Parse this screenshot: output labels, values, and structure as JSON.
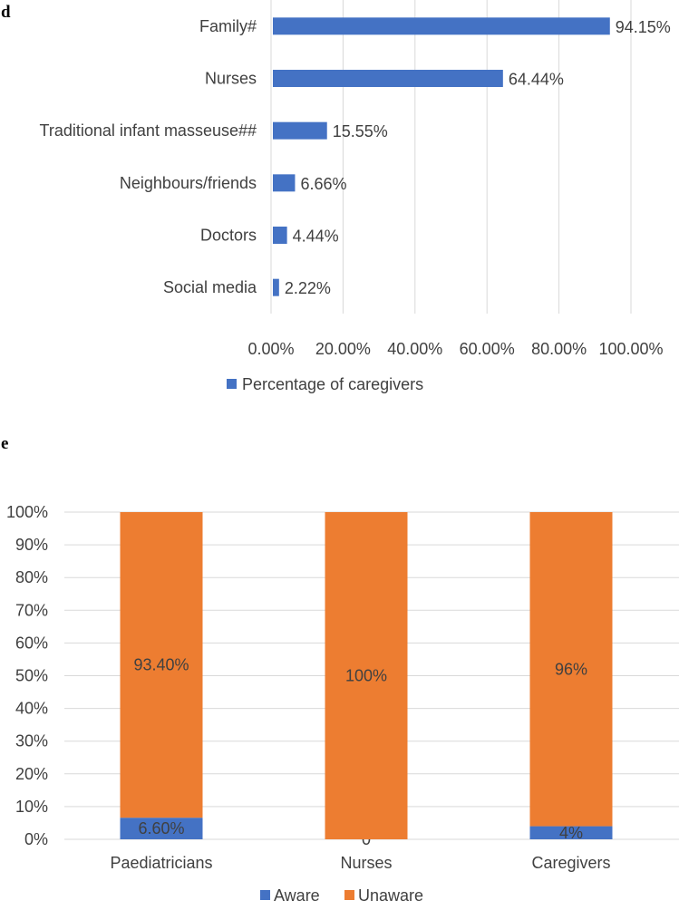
{
  "colors": {
    "aware": "#4472c4",
    "unaware": "#ed7d31",
    "grid": "#d9d9d9",
    "text": "#404040"
  },
  "chart_data": [
    {
      "panel_label": "d",
      "type": "bar",
      "orientation": "horizontal",
      "categories": [
        "Family#",
        "Nurses",
        "Traditional infant masseuse##",
        "Neighbours/friends",
        "Doctors",
        "Social media"
      ],
      "series": [
        {
          "name": "Percentage of caregivers",
          "values": [
            94.15,
            64.44,
            15.55,
            6.66,
            4.44,
            2.22
          ],
          "labels": [
            "94.15%",
            "64.44%",
            "15.55%",
            "6.66%",
            "4.44%",
            "2.22%"
          ]
        }
      ],
      "xlim": [
        0,
        100
      ],
      "xticks": [
        0,
        20,
        40,
        60,
        80,
        100
      ],
      "xtick_labels": [
        "0.00%",
        "20.00%",
        "40.00%",
        "60.00%",
        "80.00%",
        "100.00%"
      ],
      "grid": true,
      "legend": "bottom"
    },
    {
      "panel_label": "e",
      "type": "bar",
      "stacked": true,
      "categories": [
        "Paediatricians",
        "Nurses",
        "Caregivers"
      ],
      "series": [
        {
          "name": "Aware",
          "values": [
            6.6,
            0,
            4
          ],
          "labels": [
            "6.60%",
            "0",
            "4%"
          ]
        },
        {
          "name": "Unaware",
          "values": [
            93.4,
            100,
            96
          ],
          "labels": [
            "93.40%",
            "100%",
            "96%"
          ]
        }
      ],
      "ylim": [
        0,
        100
      ],
      "yticks": [
        0,
        10,
        20,
        30,
        40,
        50,
        60,
        70,
        80,
        90,
        100
      ],
      "ytick_labels": [
        "0%",
        "10%",
        "20%",
        "30%",
        "40%",
        "50%",
        "60%",
        "70%",
        "80%",
        "90%",
        "100%"
      ],
      "grid": true,
      "legend": "bottom"
    }
  ]
}
